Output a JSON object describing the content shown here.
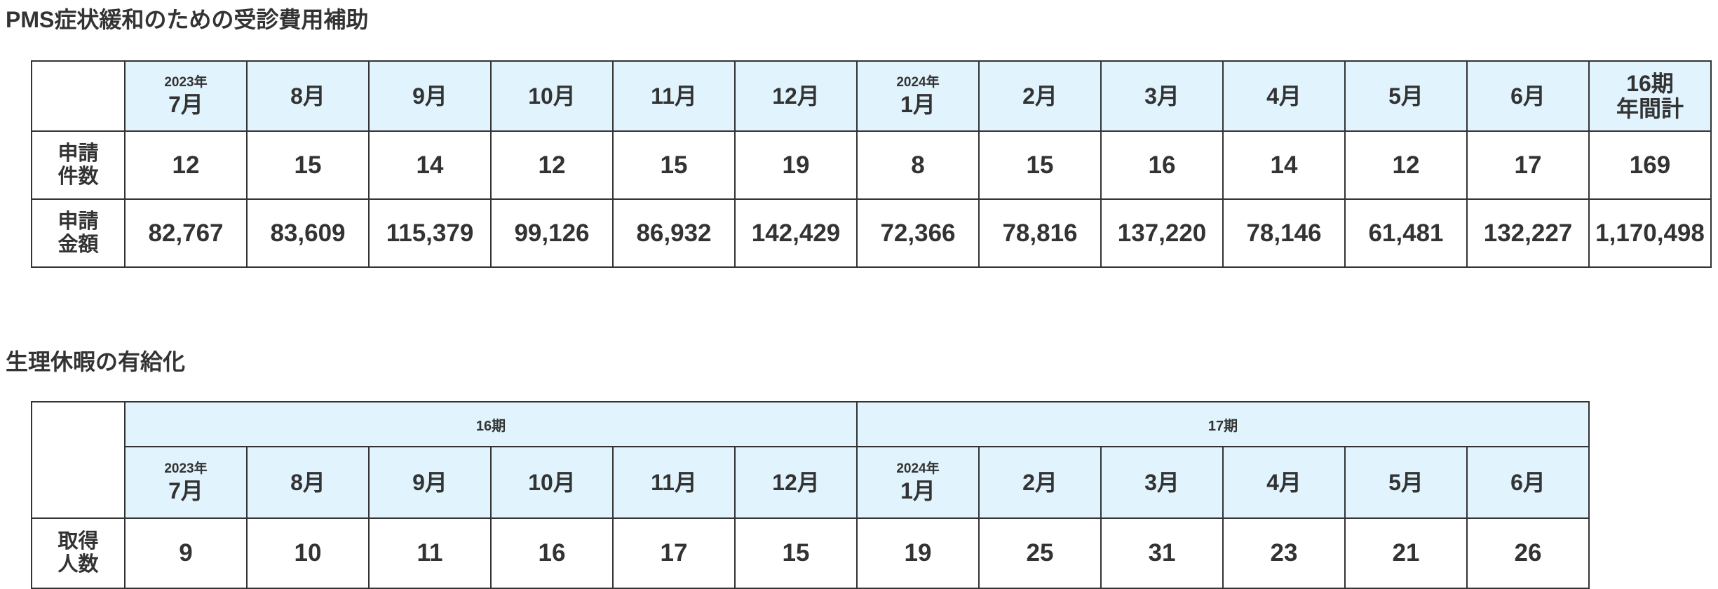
{
  "section1": {
    "title": "PMS症状緩和のための受診費用補助",
    "table": {
      "columns": [
        {
          "year": "2023年",
          "month": "7月"
        },
        {
          "month": "8月"
        },
        {
          "month": "9月"
        },
        {
          "month": "10月"
        },
        {
          "month": "11月"
        },
        {
          "month": "12月"
        },
        {
          "year": "2024年",
          "month": "1月"
        },
        {
          "month": "2月"
        },
        {
          "month": "3月"
        },
        {
          "month": "4月"
        },
        {
          "month": "5月"
        },
        {
          "month": "6月"
        }
      ],
      "total_header": [
        "16期",
        "年間計"
      ],
      "rows": [
        {
          "label": [
            "申請",
            "件数"
          ],
          "cells": [
            "12",
            "15",
            "14",
            "12",
            "15",
            "19",
            "8",
            "15",
            "16",
            "14",
            "12",
            "17",
            "169"
          ]
        },
        {
          "label": [
            "申請",
            "金額"
          ],
          "cells": [
            "82,767",
            "83,609",
            "115,379",
            "99,126",
            "86,932",
            "142,429",
            "72,366",
            "78,816",
            "137,220",
            "78,146",
            "61,481",
            "132,227",
            "1,170,498"
          ]
        }
      ]
    }
  },
  "section2": {
    "title": "生理休暇の有給化",
    "table": {
      "groups": [
        "16期",
        "17期"
      ],
      "columns": [
        {
          "year": "2023年",
          "month": "7月"
        },
        {
          "month": "8月"
        },
        {
          "month": "9月"
        },
        {
          "month": "10月"
        },
        {
          "month": "11月"
        },
        {
          "month": "12月"
        },
        {
          "year": "2024年",
          "month": "1月"
        },
        {
          "month": "2月"
        },
        {
          "month": "3月"
        },
        {
          "month": "4月"
        },
        {
          "month": "5月"
        },
        {
          "month": "6月"
        }
      ],
      "rows": [
        {
          "label": [
            "取得",
            "人数"
          ],
          "cells": [
            "9",
            "10",
            "11",
            "16",
            "17",
            "15",
            "19",
            "25",
            "31",
            "23",
            "21",
            "26"
          ]
        }
      ]
    }
  }
}
